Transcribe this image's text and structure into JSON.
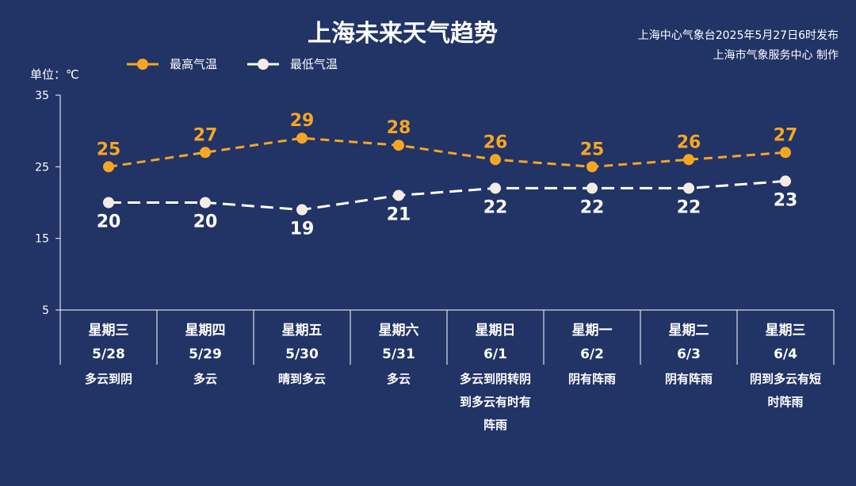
{
  "header": {
    "title": "上海未来天气趋势",
    "source_line1": "上海中心气象台2025年5月27日6时发布",
    "source_line2": "上海市气象服务中心 制作"
  },
  "legend": {
    "high_label": "最高气温",
    "low_label": "最低气温"
  },
  "unit_label": "单位：℃",
  "colors": {
    "background": "#223366",
    "high": "#f5a623",
    "low": "#ffffff",
    "axis": "#ffffff"
  },
  "chart_data": {
    "type": "line",
    "categories": [
      "星期三",
      "星期四",
      "星期五",
      "星期六",
      "星期日",
      "星期一",
      "星期二",
      "星期三"
    ],
    "dates": [
      "5/28",
      "5/29",
      "5/30",
      "5/31",
      "6/1",
      "6/2",
      "6/3",
      "6/4"
    ],
    "weather": [
      [
        "多云到阴"
      ],
      [
        "多云"
      ],
      [
        "晴到多云"
      ],
      [
        "多云"
      ],
      [
        "多云到阴转阴",
        "到多云有时有",
        "阵雨"
      ],
      [
        "阴有阵雨"
      ],
      [
        "阴有阵雨"
      ],
      [
        "阴到多云有短",
        "时阵雨"
      ]
    ],
    "series": [
      {
        "name": "最高气温",
        "values": [
          25,
          27,
          29,
          28,
          26,
          25,
          26,
          27
        ]
      },
      {
        "name": "最低气温",
        "values": [
          20,
          20,
          19,
          21,
          22,
          22,
          22,
          23
        ]
      }
    ],
    "ylabel": "单位：℃",
    "ylim": [
      5,
      35
    ],
    "yticks": [
      5,
      15,
      25,
      35
    ],
    "legend_position": "top-left"
  }
}
